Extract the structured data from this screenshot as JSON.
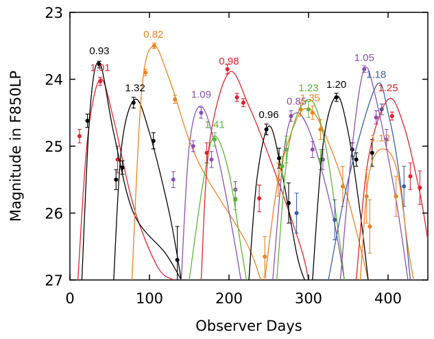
{
  "chart_data": {
    "type": "lightcurve",
    "x_label": "Observer Days",
    "y_label": "Magnitude in F850LP",
    "xlim": [
      0,
      450
    ],
    "xticks": [
      0,
      100,
      200,
      300,
      400
    ],
    "ylim": [
      23,
      27
    ],
    "yticks": [
      23,
      24,
      25,
      26,
      27
    ],
    "y_inverted": true,
    "series": [
      {
        "name": "1.01",
        "color": "#e3202b",
        "x": [
          12,
          38,
          60
        ],
        "values": [
          24.85,
          24.03,
          25.2
        ],
        "errors": [
          0.1,
          0.06,
          0.2
        ],
        "curve_x": [
          10,
          22,
          38,
          55,
          80,
          110,
          130
        ],
        "curve_y": [
          27,
          24.9,
          24.0,
          24.6,
          25.9,
          26.8,
          27
        ]
      },
      {
        "name": "0.93",
        "color": "#000000",
        "x": [
          22,
          37,
          58,
          66
        ],
        "values": [
          24.62,
          23.78,
          25.5,
          25.32
        ],
        "errors": [
          0.1,
          0.05,
          0.15,
          0.1
        ],
        "curve_x": [
          15,
          25,
          37,
          55,
          80,
          120,
          140
        ],
        "curve_y": [
          27,
          24.5,
          23.75,
          24.8,
          26.0,
          26.6,
          27
        ]
      },
      {
        "name": "1.32",
        "color": "#000000",
        "x": [
          80,
          105,
          135
        ],
        "values": [
          24.35,
          24.92,
          26.7
        ],
        "errors": [
          0.08,
          0.12,
          0.5
        ],
        "curve_x": [
          55,
          65,
          82,
          100,
          125,
          140
        ],
        "curve_y": [
          27,
          25.0,
          24.3,
          24.8,
          26.0,
          27
        ]
      },
      {
        "name": "0.82",
        "color": "#f0811c",
        "x": [
          95,
          106,
          132
        ],
        "values": [
          23.9,
          23.5,
          24.3
        ],
        "errors": [
          0.05,
          0.04,
          0.06
        ],
        "curve_x": [
          78,
          90,
          105,
          125,
          160,
          220,
          240
        ],
        "curve_y": [
          27,
          24.2,
          23.5,
          24.0,
          25.2,
          26.4,
          27
        ]
      },
      {
        "name": "1.09",
        "color": "#8b4fb3",
        "x": [
          130,
          155,
          165,
          178,
          208
        ],
        "values": [
          25.5,
          25.0,
          24.5,
          25.2,
          25.65
        ],
        "errors": [
          0.12,
          0.08,
          0.08,
          0.12,
          0.12
        ],
        "curve_x": [
          140,
          150,
          165,
          185,
          205,
          215
        ],
        "curve_y": [
          27,
          25.0,
          24.4,
          25.1,
          26.3,
          27
        ]
      },
      {
        "name": "1.41",
        "color": "#5bb535",
        "x": [
          182,
          208
        ],
        "values": [
          24.9,
          25.8
        ],
        "errors": [
          0.1,
          0.15
        ],
        "curve_x": [
          150,
          168,
          182,
          200,
          215,
          222
        ],
        "curve_y": [
          27,
          25.5,
          24.85,
          25.4,
          26.5,
          27
        ]
      },
      {
        "name": "0.98",
        "color": "#e3202b",
        "x": [
          172,
          198,
          210,
          218,
          238
        ],
        "values": [
          25.1,
          23.85,
          24.27,
          24.35,
          25.78
        ],
        "errors": [
          0.15,
          0.07,
          0.06,
          0.06,
          0.2
        ],
        "curve_x": [
          165,
          175,
          200,
          225,
          255,
          290,
          300
        ],
        "curve_y": [
          27,
          25.0,
          23.9,
          24.4,
          25.3,
          26.5,
          27
        ]
      },
      {
        "name": "0.96",
        "color": "#000000",
        "x": [
          247,
          263,
          275
        ],
        "values": [
          24.75,
          25.18,
          25.85
        ],
        "errors": [
          0.08,
          0.15,
          0.3
        ],
        "curve_x": [
          225,
          235,
          250,
          265,
          285,
          295
        ],
        "curve_y": [
          27,
          25.5,
          24.7,
          25.3,
          26.6,
          27
        ]
      },
      {
        "name": "0.85",
        "color": "#8b4fb3",
        "x": [
          278,
          305,
          318
        ],
        "values": [
          24.55,
          25.05,
          25.2
        ],
        "errors": [
          0.08,
          0.12,
          0.15
        ],
        "curve_x": [
          255,
          270,
          285,
          305,
          330,
          345
        ],
        "curve_y": [
          27,
          25.0,
          24.5,
          24.9,
          26.0,
          27
        ]
      },
      {
        "name": "1.35",
        "color": "#f0811c",
        "x": [
          245,
          262,
          290,
          305,
          315,
          343,
          377
        ],
        "values": [
          26.65,
          25.5,
          24.45,
          24.5,
          24.75,
          25.6,
          26.2
        ],
        "errors": [
          0.3,
          0.25,
          0.1,
          0.1,
          0.15,
          0.3,
          0.4
        ],
        "curve_x": [
          245,
          262,
          285,
          302,
          320,
          345,
          365,
          375
        ],
        "curve_y": [
          27,
          25.5,
          24.6,
          24.45,
          24.8,
          25.6,
          26.5,
          27
        ]
      },
      {
        "name": "1.23",
        "color": "#5bb535",
        "x": [
          267,
          272,
          300,
          315
        ],
        "values": [
          25.3,
          25.05,
          24.45,
          25.2
        ],
        "errors": [
          0.15,
          0.2,
          0.12,
          0.15
        ],
        "curve_x": [
          260,
          275,
          300,
          320,
          340,
          345
        ],
        "curve_y": [
          27,
          25.0,
          24.3,
          24.9,
          26.5,
          27
        ]
      },
      {
        "name": "1.20",
        "color": "#000000",
        "x": [
          335,
          355,
          360,
          380
        ],
        "values": [
          24.27,
          25.05,
          25.2,
          25.1
        ],
        "errors": [
          0.06,
          0.1,
          0.1,
          0.2
        ],
        "curve_x": [
          305,
          318,
          335,
          350,
          365,
          375
        ],
        "curve_y": [
          27,
          25.0,
          24.25,
          24.8,
          26.0,
          27
        ]
      },
      {
        "name": "1.18",
        "color": "#3a5ea8",
        "x": [
          285,
          333,
          392,
          420
        ],
        "values": [
          26.0,
          26.1,
          24.45,
          25.6
        ],
        "errors": [
          0.3,
          0.3,
          0.08,
          0.3
        ],
        "curve_x": [
          325,
          350,
          385,
          400,
          415,
          428
        ],
        "curve_y": [
          27,
          25.5,
          24.1,
          24.5,
          25.5,
          27
        ]
      },
      {
        "name": "1.05",
        "color": "#8b4fb3",
        "x": [
          370,
          385,
          398
        ],
        "values": [
          23.85,
          24.57,
          24.9
        ],
        "errors": [
          0.05,
          0.1,
          0.15
        ],
        "curve_x": [
          340,
          355,
          370,
          385,
          410,
          425
        ],
        "curve_y": [
          27,
          25.0,
          23.85,
          24.3,
          25.8,
          27
        ]
      },
      {
        "name": "1.25",
        "color": "#e3202b",
        "x": [
          405,
          428,
          440
        ],
        "values": [
          24.55,
          25.45,
          25.62
        ],
        "errors": [
          0.06,
          0.2,
          0.25
        ],
        "curve_x": [
          360,
          375,
          400,
          420,
          440,
          450
        ],
        "curve_y": [
          27,
          25.2,
          24.3,
          24.7,
          25.7,
          26.4
        ]
      },
      {
        "name": "1.12",
        "color": "#f0811c",
        "x": [
          373,
          410
        ],
        "values": [
          25.75,
          25.75
        ],
        "errors": [
          0.4,
          0.3
        ],
        "curve_x": [
          365,
          375,
          390,
          410,
          425,
          432
        ],
        "curve_y": [
          27,
          25.5,
          25.05,
          25.3,
          26.5,
          27
        ]
      }
    ]
  }
}
